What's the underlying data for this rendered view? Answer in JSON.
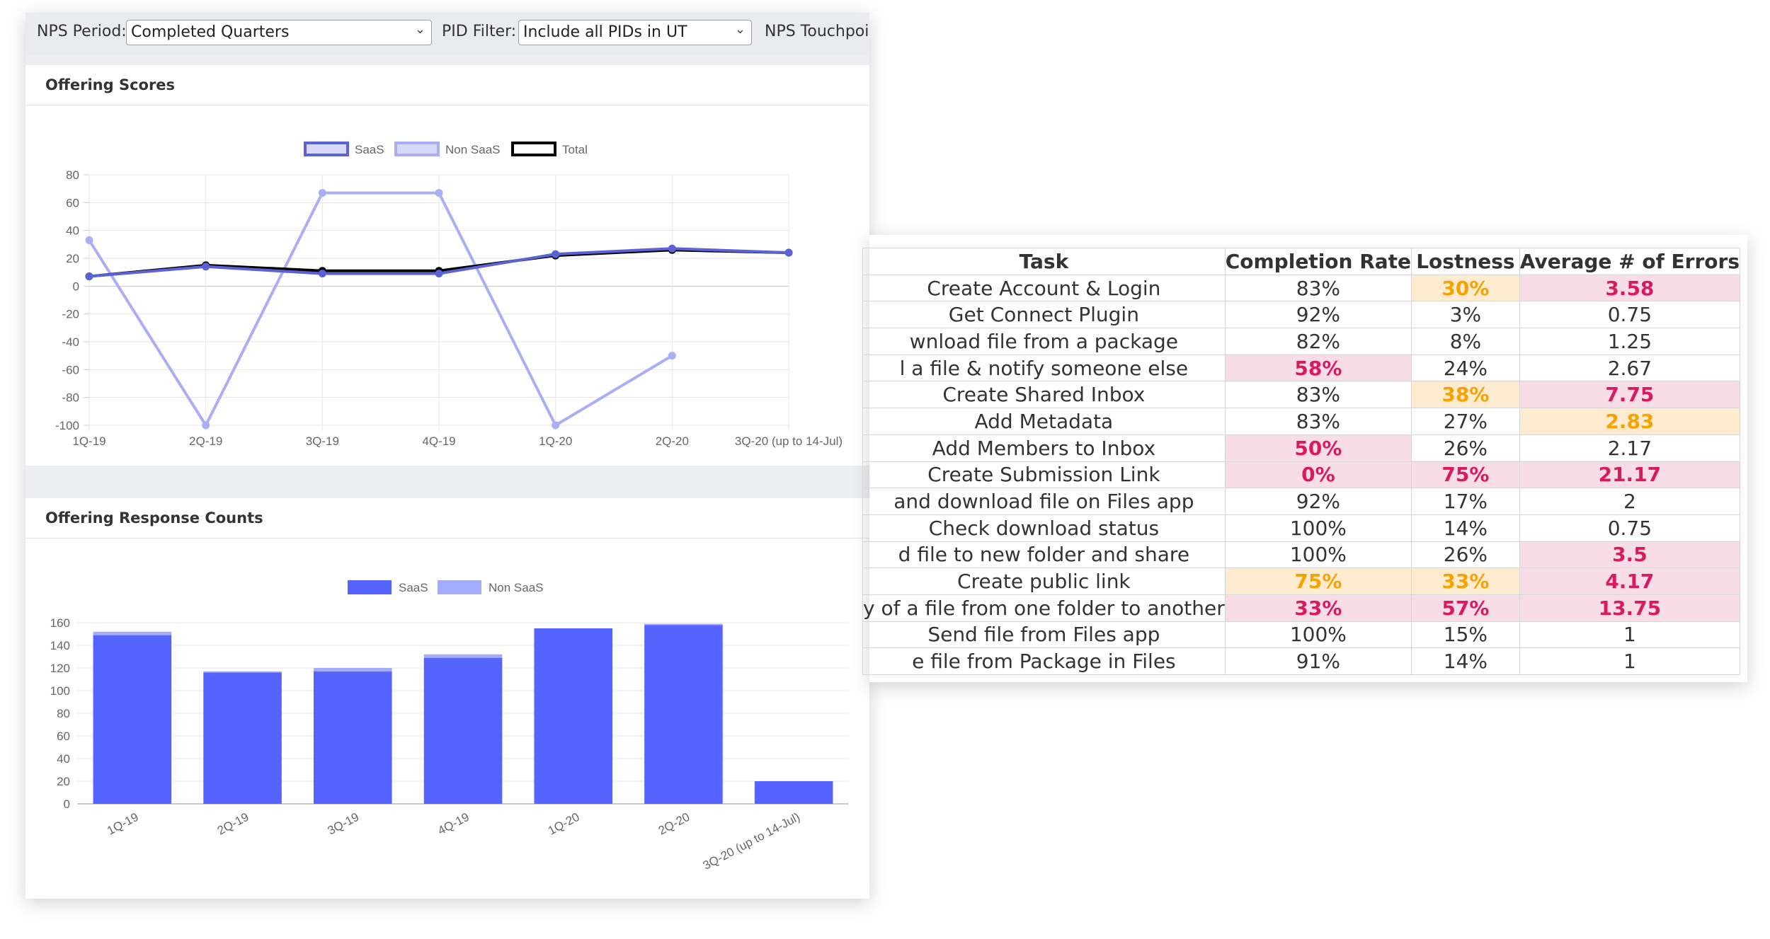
{
  "filters": {
    "nps_period_label": "NPS Period:",
    "nps_period_value": "Completed Quarters",
    "pid_filter_label": "PID Filter:",
    "pid_filter_value": "Include all PIDs in UT",
    "touchpoint_label": "NPS Touchpoin"
  },
  "panels": {
    "offering_scores_title": "Offering Scores",
    "response_counts_title": "Offering Response Counts"
  },
  "chart_data": [
    {
      "type": "line",
      "title": "Offering Scores",
      "categories": [
        "1Q-19",
        "2Q-19",
        "3Q-19",
        "4Q-19",
        "1Q-20",
        "2Q-20",
        "3Q-20 (up to 14-Jul)"
      ],
      "series": [
        {
          "name": "SaaS",
          "color": "#5b62d6",
          "values": [
            7,
            14,
            9,
            9,
            23,
            27,
            24
          ]
        },
        {
          "name": "Non SaaS",
          "color": "#a9aef5",
          "values": [
            33,
            -100,
            67,
            67,
            -100,
            -50,
            null
          ]
        },
        {
          "name": "Total",
          "color": "#000000",
          "values": [
            7,
            15,
            11,
            11,
            22,
            26,
            24
          ]
        }
      ],
      "yticks": [
        80,
        60,
        40,
        20,
        0,
        -20,
        -40,
        -60,
        -80,
        -100
      ],
      "ylim": [
        -100,
        80
      ],
      "legend": "top-center",
      "grid": true
    },
    {
      "type": "bar",
      "stacked": true,
      "title": "Offering Response Counts",
      "categories": [
        "1Q-19",
        "2Q-19",
        "3Q-19",
        "4Q-19",
        "1Q-20",
        "2Q-20",
        "3Q-20 (up to 14-Jul)"
      ],
      "series": [
        {
          "name": "SaaS",
          "color": "#5563ff",
          "values": [
            149,
            116,
            117,
            129,
            155,
            158,
            20
          ]
        },
        {
          "name": "Non SaaS",
          "color": "#a4acfd",
          "values": [
            3,
            1,
            3,
            3,
            0,
            1,
            0
          ]
        }
      ],
      "yticks": [
        160,
        140,
        120,
        100,
        80,
        60,
        40,
        20,
        0
      ],
      "ylim": [
        0,
        160
      ],
      "legend": "top-center",
      "grid": true
    },
    {
      "type": "table",
      "columns": [
        "Task",
        "Completion Rate",
        "Lostness",
        "Average # of Errors"
      ],
      "rows": [
        [
          "Create Account & Login",
          "83%",
          "30%",
          "3.58"
        ],
        [
          "Get Connect Plugin",
          "92%",
          "3%",
          "0.75"
        ],
        [
          "wnload file from a package",
          "82%",
          "8%",
          "1.25"
        ],
        [
          "l a file & notify someone else",
          "58%",
          "24%",
          "2.67"
        ],
        [
          "Create Shared Inbox",
          "83%",
          "38%",
          "7.75"
        ],
        [
          "Add Metadata",
          "83%",
          "27%",
          "2.83"
        ],
        [
          "Add Members to Inbox",
          "50%",
          "26%",
          "2.17"
        ],
        [
          "Create Submission Link",
          "0%",
          "75%",
          "21.17"
        ],
        [
          "and download file on Files app",
          "92%",
          "17%",
          "2"
        ],
        [
          "Check download status",
          "100%",
          "14%",
          "0.75"
        ],
        [
          "d file to new folder and share",
          "100%",
          "26%",
          "3.5"
        ],
        [
          "Create public link",
          "75%",
          "33%",
          "4.17"
        ],
        [
          "y of a file from one folder to another",
          "33%",
          "57%",
          "13.75"
        ],
        [
          "Send file from Files app",
          "100%",
          "15%",
          "1"
        ],
        [
          "e file from Package in Files",
          "91%",
          "14%",
          "1"
        ]
      ],
      "highlights": [
        [
          "",
          "",
          "orange",
          "pink"
        ],
        [
          "",
          "",
          "",
          ""
        ],
        [
          "",
          "",
          "",
          ""
        ],
        [
          "",
          "pink",
          "",
          ""
        ],
        [
          "",
          "",
          "orange",
          "pink"
        ],
        [
          "",
          "",
          "",
          "orange"
        ],
        [
          "",
          "pink",
          "",
          ""
        ],
        [
          "",
          "pink",
          "pink",
          "pink"
        ],
        [
          "",
          "",
          "",
          ""
        ],
        [
          "",
          "",
          "",
          ""
        ],
        [
          "",
          "",
          "",
          "pink"
        ],
        [
          "",
          "orange",
          "orange",
          "pink"
        ],
        [
          "",
          "pink",
          "pink",
          "pink"
        ],
        [
          "",
          "",
          "",
          ""
        ],
        [
          "",
          "",
          "",
          ""
        ]
      ]
    }
  ]
}
